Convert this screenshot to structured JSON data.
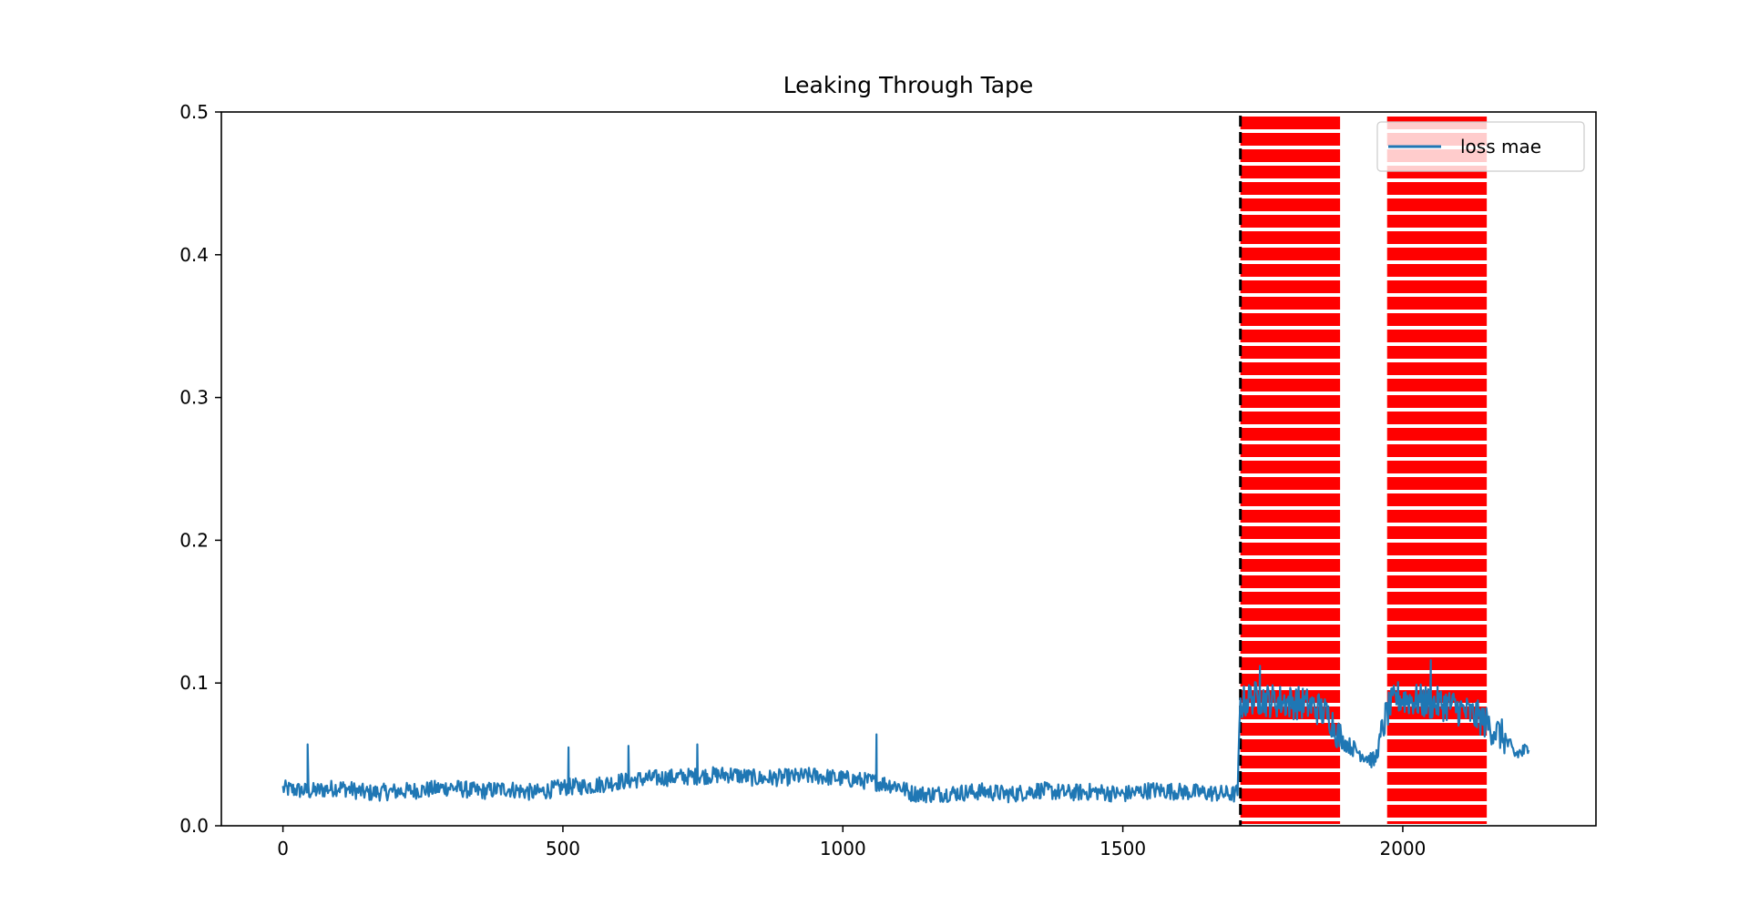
{
  "chart_data": {
    "type": "line",
    "title": "Leaking Through Tape",
    "xlabel": "",
    "ylabel": "",
    "xlim": [
      -110,
      2345
    ],
    "ylim": [
      0,
      0.5
    ],
    "x_ticks": [
      0,
      500,
      1000,
      1500,
      2000
    ],
    "y_ticks": [
      0.0,
      0.1,
      0.2,
      0.3,
      0.4,
      0.5
    ],
    "x_tick_labels": [
      "0",
      "500",
      "1000",
      "1500",
      "2000"
    ],
    "y_tick_labels": [
      "0.0",
      "0.1",
      "0.2",
      "0.3",
      "0.4",
      "0.5"
    ],
    "legend": {
      "position": "top-right",
      "entries": [
        "loss mae"
      ]
    },
    "grid": false,
    "colors": {
      "series": "#1f77b4",
      "anomaly": "#ff0000",
      "threshold": "#000000"
    },
    "anomaly_regions": [
      {
        "x_start": 1710,
        "x_end": 1888
      },
      {
        "x_start": 1972,
        "x_end": 2150
      }
    ],
    "threshold_line_x": 1710,
    "series": [
      {
        "name": "loss mae",
        "x": [
          0,
          50,
          100,
          150,
          200,
          250,
          300,
          350,
          400,
          450,
          500,
          550,
          600,
          650,
          700,
          750,
          800,
          850,
          900,
          950,
          1000,
          1050,
          1100,
          1120,
          1150,
          1200,
          1250,
          1300,
          1350,
          1400,
          1450,
          1500,
          1550,
          1600,
          1650,
          1700,
          1705,
          1710,
          1730,
          1760,
          1790,
          1820,
          1850,
          1870,
          1890,
          1920,
          1950,
          1972,
          1990,
          2020,
          2050,
          2080,
          2110,
          2140,
          2160,
          2180,
          2200,
          2225
        ],
        "y": [
          0.026,
          0.024,
          0.027,
          0.023,
          0.024,
          0.025,
          0.027,
          0.024,
          0.026,
          0.023,
          0.027,
          0.028,
          0.031,
          0.033,
          0.034,
          0.035,
          0.036,
          0.033,
          0.034,
          0.035,
          0.033,
          0.031,
          0.028,
          0.023,
          0.022,
          0.023,
          0.024,
          0.022,
          0.025,
          0.023,
          0.024,
          0.022,
          0.025,
          0.024,
          0.023,
          0.022,
          0.024,
          0.085,
          0.09,
          0.088,
          0.087,
          0.086,
          0.082,
          0.076,
          0.06,
          0.052,
          0.045,
          0.08,
          0.09,
          0.088,
          0.086,
          0.085,
          0.08,
          0.075,
          0.068,
          0.062,
          0.05,
          0.053
        ],
        "spikes": [
          {
            "x": 44,
            "y": 0.057
          },
          {
            "x": 510,
            "y": 0.055
          },
          {
            "x": 617,
            "y": 0.056
          },
          {
            "x": 740,
            "y": 0.057
          },
          {
            "x": 1060,
            "y": 0.064
          },
          {
            "x": 1745,
            "y": 0.112
          },
          {
            "x": 2050,
            "y": 0.116
          }
        ]
      }
    ]
  }
}
